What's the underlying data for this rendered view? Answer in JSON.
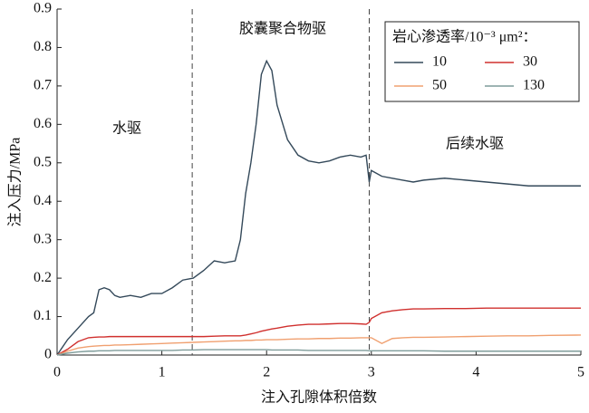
{
  "chart_data": {
    "type": "line",
    "y_label": "注入压力/MPa",
    "x_label": "注入孔隙体积倍数",
    "annotations": [
      "水驱",
      "胶囊聚合物驱",
      "后续水驱"
    ],
    "vlines": [
      1.29,
      2.98
    ],
    "legend_title": "岩心渗透率/10⁻³ μm²：",
    "legend_position": "upper right",
    "xlim": [
      0,
      5
    ],
    "xticks": [
      0,
      1,
      2,
      3,
      4,
      5
    ],
    "ylim": [
      0,
      0.9
    ],
    "yticks": [
      0,
      0.1,
      0.2,
      0.3,
      0.4,
      0.5,
      0.6,
      0.7,
      0.8,
      0.9
    ],
    "x": [
      0,
      0.1,
      0.2,
      0.3,
      0.35,
      0.4,
      0.45,
      0.5,
      0.55,
      0.6,
      0.7,
      0.8,
      0.9,
      1.0,
      1.1,
      1.2,
      1.3,
      1.4,
      1.5,
      1.6,
      1.7,
      1.75,
      1.8,
      1.85,
      1.9,
      1.95,
      2.0,
      2.05,
      2.1,
      2.2,
      2.3,
      2.4,
      2.5,
      2.6,
      2.7,
      2.8,
      2.9,
      2.95,
      2.98,
      3.0,
      3.1,
      3.2,
      3.3,
      3.4,
      3.5,
      3.7,
      3.9,
      4.1,
      4.3,
      4.5,
      4.7,
      5.0
    ],
    "series": [
      {
        "name": "10",
        "color": "#34495a",
        "values": [
          0,
          0.04,
          0.07,
          0.1,
          0.11,
          0.17,
          0.175,
          0.17,
          0.155,
          0.15,
          0.155,
          0.15,
          0.16,
          0.16,
          0.175,
          0.195,
          0.2,
          0.22,
          0.245,
          0.24,
          0.245,
          0.3,
          0.42,
          0.5,
          0.6,
          0.73,
          0.765,
          0.74,
          0.65,
          0.56,
          0.52,
          0.505,
          0.5,
          0.505,
          0.515,
          0.52,
          0.515,
          0.52,
          0.45,
          0.48,
          0.465,
          0.46,
          0.455,
          0.45,
          0.455,
          0.46,
          0.455,
          0.45,
          0.445,
          0.44,
          0.44,
          0.44
        ]
      },
      {
        "name": "30",
        "color": "#d0302e",
        "values": [
          0,
          0.015,
          0.035,
          0.045,
          0.046,
          0.047,
          0.047,
          0.048,
          0.048,
          0.048,
          0.048,
          0.048,
          0.048,
          0.048,
          0.048,
          0.048,
          0.048,
          0.048,
          0.049,
          0.05,
          0.05,
          0.05,
          0.052,
          0.055,
          0.058,
          0.062,
          0.065,
          0.068,
          0.07,
          0.075,
          0.078,
          0.08,
          0.08,
          0.081,
          0.082,
          0.082,
          0.081,
          0.08,
          0.085,
          0.095,
          0.11,
          0.115,
          0.118,
          0.12,
          0.12,
          0.121,
          0.121,
          0.122,
          0.122,
          0.122,
          0.122,
          0.122
        ]
      },
      {
        "name": "50",
        "color": "#f0a070",
        "values": [
          0,
          0.01,
          0.018,
          0.022,
          0.023,
          0.024,
          0.025,
          0.025,
          0.026,
          0.026,
          0.027,
          0.028,
          0.029,
          0.03,
          0.031,
          0.032,
          0.033,
          0.034,
          0.035,
          0.036,
          0.037,
          0.037,
          0.038,
          0.038,
          0.039,
          0.039,
          0.04,
          0.04,
          0.04,
          0.041,
          0.042,
          0.042,
          0.043,
          0.043,
          0.044,
          0.044,
          0.045,
          0.045,
          0.045,
          0.045,
          0.03,
          0.043,
          0.045,
          0.046,
          0.046,
          0.047,
          0.048,
          0.049,
          0.05,
          0.05,
          0.051,
          0.052
        ]
      },
      {
        "name": "130",
        "color": "#7f9c9a",
        "values": [
          0,
          0.005,
          0.008,
          0.01,
          0.01,
          0.011,
          0.011,
          0.011,
          0.012,
          0.012,
          0.012,
          0.012,
          0.012,
          0.012,
          0.012,
          0.013,
          0.013,
          0.014,
          0.014,
          0.014,
          0.014,
          0.014,
          0.014,
          0.014,
          0.014,
          0.014,
          0.014,
          0.013,
          0.013,
          0.013,
          0.013,
          0.012,
          0.012,
          0.012,
          0.012,
          0.012,
          0.012,
          0.012,
          0.011,
          0.011,
          0.011,
          0.011,
          0.011,
          0.011,
          0.011,
          0.01,
          0.01,
          0.01,
          0.01,
          0.01,
          0.01,
          0.01
        ]
      }
    ]
  }
}
